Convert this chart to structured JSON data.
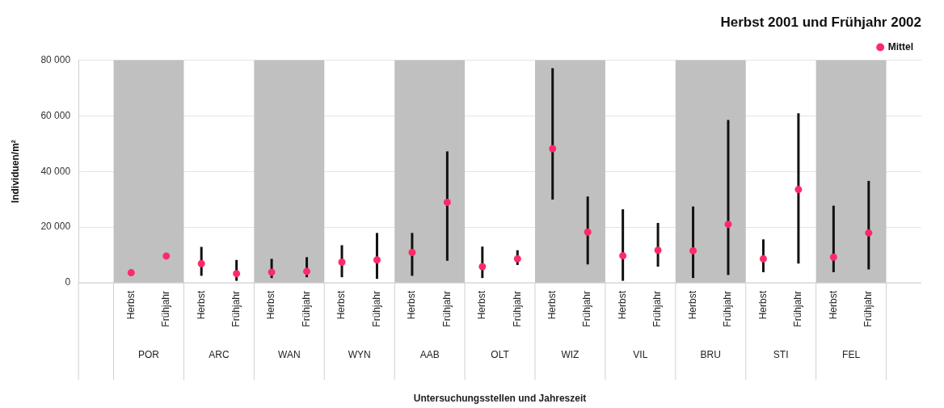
{
  "chart_data": {
    "type": "scatter",
    "title": "Herbst 2001 und Frühjahr 2002",
    "xlabel": "Untersuchungsstellen und Jahreszeit",
    "ylabel": "Individuen/m²",
    "legend": "top right",
    "marker": "circle",
    "grid": "y",
    "categories": [
      "POR",
      "ARC",
      "WAN",
      "WYN",
      "AAB",
      "OLT",
      "WIZ",
      "VIL",
      "BRU",
      "STI",
      "FEL"
    ],
    "series": [
      {
        "name": "Mittel",
        "color": "#ff2a6a",
        "x": [
          "POR",
          "POR",
          "ARC",
          "ARC",
          "WAN",
          "WAN",
          "WYN",
          "WYN",
          "AAB",
          "AAB",
          "OLT",
          "OLT",
          "WIZ",
          "WIZ",
          "VIL",
          "VIL",
          "BRU",
          "BRU",
          "STI",
          "STI",
          "FEL",
          "FEL"
        ],
        "values": [
          3600,
          9600,
          6900,
          3300,
          3800,
          4100,
          7400,
          8200,
          10900,
          28900,
          5800,
          8600,
          48200,
          18200,
          9700,
          11700,
          11500,
          21000,
          8600,
          33500,
          9200,
          17900
        ],
        "errors": [
          null,
          null,
          [
            2500,
            12900
          ],
          [
            700,
            8200
          ],
          [
            1700,
            8600
          ],
          [
            2000,
            9200
          ],
          [
            2000,
            13500
          ],
          [
            1400,
            17900
          ],
          [
            2500,
            17900
          ],
          [
            7900,
            47200
          ],
          [
            1700,
            13000
          ],
          [
            6400,
            11700
          ],
          [
            29900,
            77100
          ],
          [
            6600,
            31000
          ],
          [
            700,
            26400
          ],
          [
            5800,
            21500
          ],
          [
            1700,
            27400
          ],
          [
            2800,
            58500
          ],
          [
            3800,
            15600
          ],
          [
            6900,
            60900
          ],
          [
            3800,
            27700
          ],
          [
            4800,
            36600
          ]
        ]
      }
    ],
    "annotations": [
      "Herbst",
      "Frühjahr",
      "Herbst",
      "Frühjahr",
      "Herbst",
      "Frühjahr",
      "Herbst",
      "Frühjahr",
      "Herbst",
      "Frühjahr",
      "Herbst",
      "Frühjahr",
      "Herbst",
      "Frühjahr",
      "Herbst",
      "Frühjahr",
      "Herbst",
      "Frühjahr",
      "Herbst",
      "Frühjahr",
      "Herbst",
      "Frühjahr"
    ],
    "bands": [
      {
        "axis": "x",
        "from": "POR",
        "to": "POR",
        "color": "#c0c0c0"
      },
      {
        "axis": "x",
        "from": "WAN",
        "to": "WAN",
        "color": "#c0c0c0"
      },
      {
        "axis": "x",
        "from": "AAB",
        "to": "AAB",
        "color": "#c0c0c0"
      },
      {
        "axis": "x",
        "from": "WIZ",
        "to": "WIZ",
        "color": "#c0c0c0"
      },
      {
        "axis": "x",
        "from": "BRU",
        "to": "BRU",
        "color": "#c0c0c0"
      },
      {
        "axis": "x",
        "from": "FEL",
        "to": "FEL",
        "color": "#c0c0c0"
      }
    ],
    "ylim": [
      0,
      80000
    ],
    "yticks": [
      {
        "value": 0,
        "label": "0"
      },
      {
        "value": 20000,
        "label": "20 000"
      },
      {
        "value": 40000,
        "label": "40 000"
      },
      {
        "value": 60000,
        "label": "60 000"
      },
      {
        "value": 80000,
        "label": "80 000"
      }
    ]
  }
}
